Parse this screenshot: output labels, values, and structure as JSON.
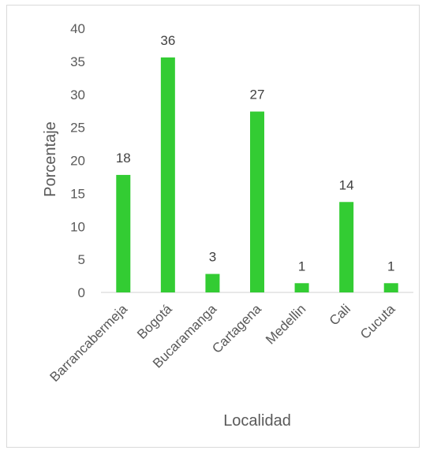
{
  "chart_data": {
    "type": "bar",
    "categories": [
      "Barrancabermeja",
      "Bogotá",
      "Bucaramanga",
      "Cartagena",
      "Medellin",
      "Cali",
      "Cucuta"
    ],
    "values": [
      17.8,
      35.6,
      2.8,
      27.4,
      1.4,
      13.7,
      1.4
    ],
    "data_labels": [
      "18",
      "36",
      "3",
      "27",
      "1",
      "14",
      "1"
    ],
    "title": "",
    "xlabel": "Localidad",
    "ylabel": "Porcentaje",
    "ylim": [
      0,
      40
    ],
    "yticks": [
      0,
      5,
      10,
      15,
      20,
      25,
      30,
      35,
      40
    ],
    "grid": false,
    "legend": "none",
    "bar_color": "#33cc33"
  }
}
